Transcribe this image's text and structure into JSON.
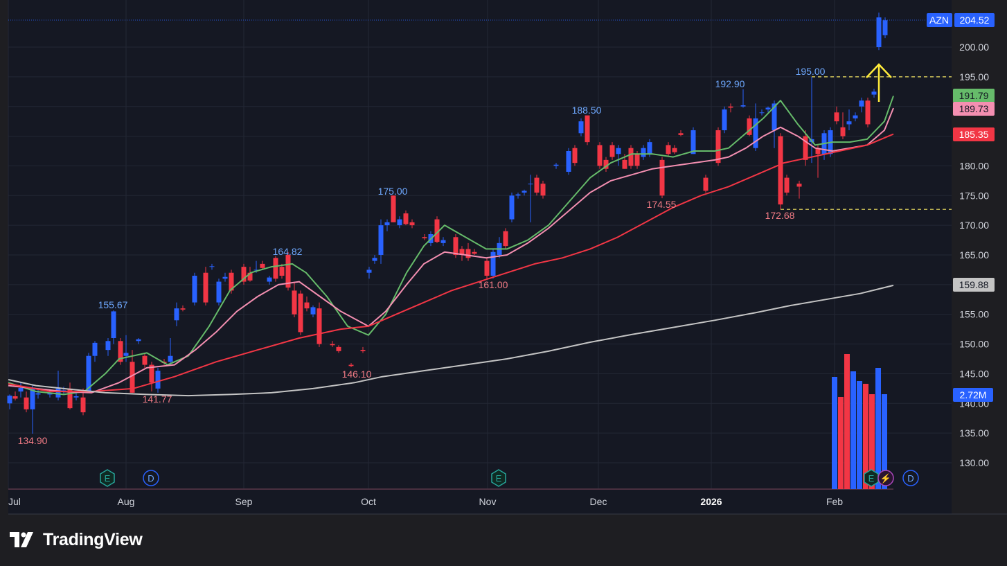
{
  "chart_data": {
    "type": "candlestick",
    "ticker": "AZN",
    "last_price": 204.52,
    "volume_label": "2.72M",
    "y_range": [
      125,
      206
    ],
    "y_ticks": [
      130,
      135,
      140,
      145,
      150,
      155,
      160,
      165,
      170,
      175,
      180,
      185,
      190,
      195,
      200
    ],
    "x_labels": [
      {
        "label": "Jul",
        "bold": false
      },
      {
        "label": "Aug",
        "bold": false
      },
      {
        "label": "Sep",
        "bold": false
      },
      {
        "label": "Oct",
        "bold": false
      },
      {
        "label": "Nov",
        "bold": false
      },
      {
        "label": "Dec",
        "bold": false
      },
      {
        "label": "2026",
        "bold": true
      },
      {
        "label": "Feb",
        "bold": false
      }
    ],
    "price_tags": [
      {
        "name": "ticker-price",
        "value": "204.52",
        "color": "#2962ff"
      },
      {
        "name": "green-ma",
        "value": "191.79",
        "color": "#66bb6a"
      },
      {
        "name": "pink-ma",
        "value": "189.73",
        "color": "#f48fb1"
      },
      {
        "name": "red-ma",
        "value": "185.35",
        "color": "#f23645"
      },
      {
        "name": "white-ma",
        "value": "159.88",
        "color": "#c4c4c4"
      }
    ],
    "highs": [
      {
        "value": "155.67",
        "kind": "high"
      },
      {
        "value": "164.82",
        "kind": "high"
      },
      {
        "value": "175.00",
        "kind": "high"
      },
      {
        "value": "188.50",
        "kind": "high"
      },
      {
        "value": "192.90",
        "kind": "high"
      },
      {
        "value": "195.00",
        "kind": "high"
      }
    ],
    "lows": [
      {
        "value": "134.90",
        "kind": "low"
      },
      {
        "value": "141.77",
        "kind": "low"
      },
      {
        "value": "146.10",
        "kind": "low"
      },
      {
        "value": "161.00",
        "kind": "low"
      },
      {
        "value": "174.55",
        "kind": "low"
      },
      {
        "value": "172.68",
        "kind": "low"
      }
    ],
    "reference_lines": [
      195,
      172.68
    ],
    "moving_averages": [
      {
        "name": "green",
        "color": "#66bb6a",
        "points": [
          [
            0,
            143.5
          ],
          [
            40,
            142
          ],
          [
            80,
            141.5
          ],
          [
            110,
            142
          ],
          [
            140,
            145
          ],
          [
            160,
            147.5
          ],
          [
            200,
            148.5
          ],
          [
            230,
            146.5
          ],
          [
            260,
            148
          ],
          [
            290,
            153
          ],
          [
            320,
            159
          ],
          [
            350,
            162
          ],
          [
            380,
            163
          ],
          [
            410,
            163.5
          ],
          [
            430,
            162
          ],
          [
            460,
            158
          ],
          [
            490,
            153
          ],
          [
            520,
            151.5
          ],
          [
            545,
            155
          ],
          [
            575,
            162
          ],
          [
            600,
            166.5
          ],
          [
            630,
            170
          ],
          [
            660,
            168
          ],
          [
            690,
            166
          ],
          [
            720,
            166
          ],
          [
            750,
            167.5
          ],
          [
            780,
            170
          ],
          [
            810,
            174
          ],
          [
            840,
            178
          ],
          [
            870,
            180.5
          ],
          [
            900,
            182
          ],
          [
            930,
            182
          ],
          [
            960,
            181.5
          ],
          [
            990,
            182.5
          ],
          [
            1020,
            182.5
          ],
          [
            1040,
            183
          ],
          [
            1065,
            185.5
          ],
          [
            1090,
            188
          ],
          [
            1115,
            191
          ],
          [
            1140,
            187
          ],
          [
            1165,
            183.5
          ],
          [
            1190,
            184
          ],
          [
            1215,
            184
          ],
          [
            1240,
            184.5
          ],
          [
            1265,
            187.5
          ],
          [
            1278,
            191.79
          ]
        ]
      },
      {
        "name": "pink",
        "color": "#f48fb1",
        "points": [
          [
            0,
            143
          ],
          [
            40,
            142.5
          ],
          [
            80,
            142
          ],
          [
            120,
            141.8
          ],
          [
            160,
            143.5
          ],
          [
            200,
            146
          ],
          [
            240,
            146.5
          ],
          [
            270,
            149
          ],
          [
            300,
            152
          ],
          [
            330,
            155.5
          ],
          [
            360,
            158
          ],
          [
            390,
            160
          ],
          [
            420,
            160.5
          ],
          [
            450,
            158
          ],
          [
            480,
            155.5
          ],
          [
            520,
            153
          ],
          [
            545,
            155.5
          ],
          [
            575,
            160
          ],
          [
            600,
            163.5
          ],
          [
            630,
            165.5
          ],
          [
            660,
            165
          ],
          [
            690,
            164.5
          ],
          [
            720,
            165
          ],
          [
            750,
            167
          ],
          [
            780,
            169.5
          ],
          [
            810,
            172.5
          ],
          [
            840,
            175.5
          ],
          [
            870,
            177.5
          ],
          [
            900,
            178.5
          ],
          [
            930,
            179.5
          ],
          [
            960,
            180
          ],
          [
            990,
            180.5
          ],
          [
            1020,
            181
          ],
          [
            1040,
            181.5
          ],
          [
            1065,
            183
          ],
          [
            1090,
            185
          ],
          [
            1115,
            186.5
          ],
          [
            1140,
            185
          ],
          [
            1165,
            183
          ],
          [
            1190,
            182.5
          ],
          [
            1215,
            183
          ],
          [
            1240,
            183.5
          ],
          [
            1265,
            186
          ],
          [
            1278,
            189.73
          ]
        ]
      },
      {
        "name": "red",
        "color": "#f23645",
        "points": [
          [
            0,
            143.3
          ],
          [
            60,
            142
          ],
          [
            120,
            142
          ],
          [
            180,
            142.5
          ],
          [
            240,
            144.5
          ],
          [
            300,
            147
          ],
          [
            360,
            149
          ],
          [
            420,
            151
          ],
          [
            480,
            152.5
          ],
          [
            520,
            153
          ],
          [
            560,
            155
          ],
          [
            600,
            157
          ],
          [
            640,
            159
          ],
          [
            680,
            160.5
          ],
          [
            720,
            162
          ],
          [
            760,
            163.5
          ],
          [
            800,
            164.5
          ],
          [
            840,
            166
          ],
          [
            880,
            168
          ],
          [
            920,
            170.5
          ],
          [
            960,
            173
          ],
          [
            1000,
            175
          ],
          [
            1040,
            176.5
          ],
          [
            1080,
            178.5
          ],
          [
            1120,
            180.5
          ],
          [
            1160,
            181.5
          ],
          [
            1200,
            182.5
          ],
          [
            1240,
            183.5
          ],
          [
            1278,
            185.35
          ]
        ]
      },
      {
        "name": "white",
        "color": "#c4c4c4",
        "points": [
          [
            0,
            144
          ],
          [
            40,
            143
          ],
          [
            80,
            142.5
          ],
          [
            140,
            141.8
          ],
          [
            200,
            141.5
          ],
          [
            260,
            141.3
          ],
          [
            320,
            141.5
          ],
          [
            380,
            141.8
          ],
          [
            440,
            142.5
          ],
          [
            500,
            143.5
          ],
          [
            540,
            144.5
          ],
          [
            600,
            145.5
          ],
          [
            660,
            146.5
          ],
          [
            720,
            147.5
          ],
          [
            780,
            148.8
          ],
          [
            840,
            150.3
          ],
          [
            900,
            151.6
          ],
          [
            960,
            152.8
          ],
          [
            1020,
            154
          ],
          [
            1080,
            155.3
          ],
          [
            1130,
            156.5
          ],
          [
            1180,
            157.5
          ],
          [
            1230,
            158.5
          ],
          [
            1278,
            159.88
          ]
        ]
      }
    ],
    "markers": [
      {
        "label": "E",
        "type": "earnings"
      },
      {
        "label": "D",
        "type": "dividend"
      },
      {
        "label": "E",
        "type": "earnings"
      },
      {
        "label": "E",
        "type": "earnings"
      },
      {
        "label": "⚡",
        "type": "split"
      },
      {
        "label": "D",
        "type": "dividend"
      }
    ]
  },
  "footer": {
    "brand": "TradingView"
  }
}
